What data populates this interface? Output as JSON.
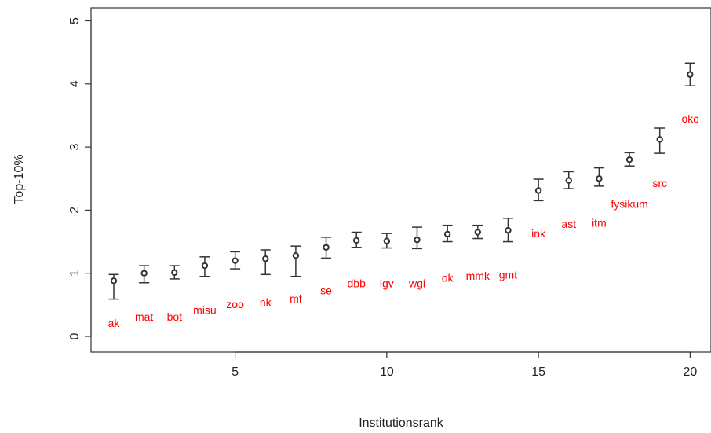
{
  "chart_data": {
    "type": "scatter",
    "xlabel": "Institutionsrank",
    "ylabel": "Top-10%",
    "xlim": [
      0.5,
      20.5
    ],
    "ylim": [
      -0.1,
      5.2
    ],
    "xticks": [
      5,
      10,
      15,
      20
    ],
    "yticks": [
      0,
      1,
      2,
      3,
      4,
      5
    ],
    "grid": false,
    "point_color": "#333333",
    "label_color": "#ff0000",
    "points": [
      {
        "x": 1,
        "y": 0.88,
        "lo": 0.59,
        "hi": 0.98,
        "label": "ak",
        "label_y": 0.21
      },
      {
        "x": 2,
        "y": 1.0,
        "lo": 0.85,
        "hi": 1.12,
        "label": "mat",
        "label_y": 0.31
      },
      {
        "x": 3,
        "y": 1.01,
        "lo": 0.91,
        "hi": 1.12,
        "label": "bot",
        "label_y": 0.31
      },
      {
        "x": 4,
        "y": 1.12,
        "lo": 0.95,
        "hi": 1.26,
        "label": "misu",
        "label_y": 0.42
      },
      {
        "x": 5,
        "y": 1.2,
        "lo": 1.07,
        "hi": 1.34,
        "label": "zoo",
        "label_y": 0.51
      },
      {
        "x": 6,
        "y": 1.23,
        "lo": 0.98,
        "hi": 1.37,
        "label": "nk",
        "label_y": 0.54
      },
      {
        "x": 7,
        "y": 1.28,
        "lo": 0.95,
        "hi": 1.43,
        "label": "mf",
        "label_y": 0.6
      },
      {
        "x": 8,
        "y": 1.41,
        "lo": 1.24,
        "hi": 1.57,
        "label": "se",
        "label_y": 0.73
      },
      {
        "x": 9,
        "y": 1.52,
        "lo": 1.41,
        "hi": 1.65,
        "label": "dbb",
        "label_y": 0.84
      },
      {
        "x": 10,
        "y": 1.51,
        "lo": 1.4,
        "hi": 1.63,
        "label": "igv",
        "label_y": 0.84
      },
      {
        "x": 11,
        "y": 1.53,
        "lo": 1.39,
        "hi": 1.73,
        "label": "wgi",
        "label_y": 0.84
      },
      {
        "x": 12,
        "y": 1.62,
        "lo": 1.5,
        "hi": 1.76,
        "label": "ok",
        "label_y": 0.93
      },
      {
        "x": 13,
        "y": 1.65,
        "lo": 1.55,
        "hi": 1.76,
        "label": "mmk",
        "label_y": 0.96
      },
      {
        "x": 14,
        "y": 1.68,
        "lo": 1.5,
        "hi": 1.87,
        "label": "gmt",
        "label_y": 0.98
      },
      {
        "x": 15,
        "y": 2.31,
        "lo": 2.15,
        "hi": 2.49,
        "label": "ink",
        "label_y": 1.63
      },
      {
        "x": 16,
        "y": 2.47,
        "lo": 2.34,
        "hi": 2.61,
        "label": "ast",
        "label_y": 1.78
      },
      {
        "x": 17,
        "y": 2.5,
        "lo": 2.38,
        "hi": 2.67,
        "label": "itm",
        "label_y": 1.8
      },
      {
        "x": 18,
        "y": 2.8,
        "lo": 2.7,
        "hi": 2.91,
        "label": "fysikum",
        "label_y": 2.1
      },
      {
        "x": 19,
        "y": 3.12,
        "lo": 2.9,
        "hi": 3.3,
        "label": "src",
        "label_y": 2.43
      },
      {
        "x": 20,
        "y": 4.15,
        "lo": 3.97,
        "hi": 4.33,
        "label": "okc",
        "label_y": 3.45
      }
    ]
  }
}
